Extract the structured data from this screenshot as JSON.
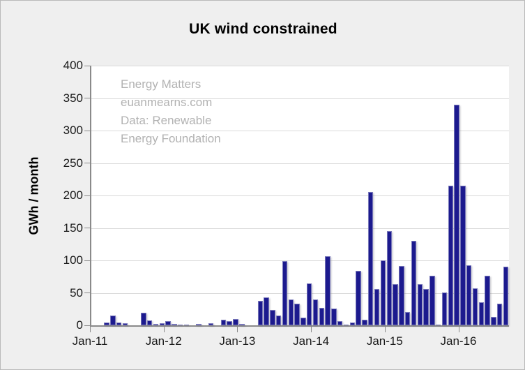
{
  "title": "UK wind constrained",
  "watermark": {
    "lines": [
      "Energy Matters",
      "euanmearns.com",
      "Data: Renewable",
      "Energy Foundation"
    ]
  },
  "colors": {
    "bar": "#1c1a8e",
    "background": "#efefef",
    "plot_background": "#ffffff",
    "gridline": "#d9d9d9",
    "axis": "#8a8a8a",
    "watermark_text": "#b2b2b2",
    "tick_text": "#1a1a1a"
  },
  "chart_data": {
    "type": "bar",
    "title": "UK wind constrained",
    "xlabel": "",
    "ylabel": "GWh / month",
    "ylim": [
      0,
      400
    ],
    "ytick_step": 50,
    "grid": true,
    "legend": false,
    "bar_color": "#1c1a8e",
    "x_tick_labels": [
      "Jan-11",
      "Jan-12",
      "Jan-13",
      "Jan-14",
      "Jan-15",
      "Jan-16"
    ],
    "x_tick_month_indices": [
      0,
      12,
      24,
      36,
      48,
      60
    ],
    "categories": [
      "Jan-11",
      "Feb-11",
      "Mar-11",
      "Apr-11",
      "May-11",
      "Jun-11",
      "Jul-11",
      "Aug-11",
      "Sep-11",
      "Oct-11",
      "Nov-11",
      "Dec-11",
      "Jan-12",
      "Feb-12",
      "Mar-12",
      "Apr-12",
      "May-12",
      "Jun-12",
      "Jul-12",
      "Aug-12",
      "Sep-12",
      "Oct-12",
      "Nov-12",
      "Dec-12",
      "Jan-13",
      "Feb-13",
      "Mar-13",
      "Apr-13",
      "May-13",
      "Jun-13",
      "Jul-13",
      "Aug-13",
      "Sep-13",
      "Oct-13",
      "Nov-13",
      "Dec-13",
      "Jan-14",
      "Feb-14",
      "Mar-14",
      "Apr-14",
      "May-14",
      "Jun-14",
      "Jul-14",
      "Aug-14",
      "Sep-14",
      "Oct-14",
      "Nov-14",
      "Dec-14",
      "Jan-15",
      "Feb-15",
      "Mar-15",
      "Apr-15",
      "May-15",
      "Jun-15",
      "Jul-15",
      "Aug-15",
      "Sep-15",
      "Oct-15",
      "Nov-15",
      "Dec-15",
      "Jan-16",
      "Feb-16",
      "Mar-16",
      "Apr-16",
      "May-16",
      "Jun-16",
      "Jul-16",
      "Aug-16"
    ],
    "values": [
      0,
      0,
      4,
      15,
      4,
      3,
      0,
      0,
      19,
      8,
      2,
      3,
      6,
      2,
      1,
      1,
      0,
      2,
      0,
      3,
      0,
      9,
      7,
      10,
      2,
      0,
      0,
      38,
      43,
      24,
      15,
      99,
      40,
      33,
      12,
      65,
      40,
      27,
      107,
      26,
      6,
      1,
      4,
      84,
      9,
      205,
      56,
      100,
      145,
      63,
      91,
      20,
      130,
      63,
      56,
      76,
      1,
      51,
      215,
      340,
      215,
      93,
      57,
      35,
      76,
      13,
      33,
      90
    ]
  }
}
